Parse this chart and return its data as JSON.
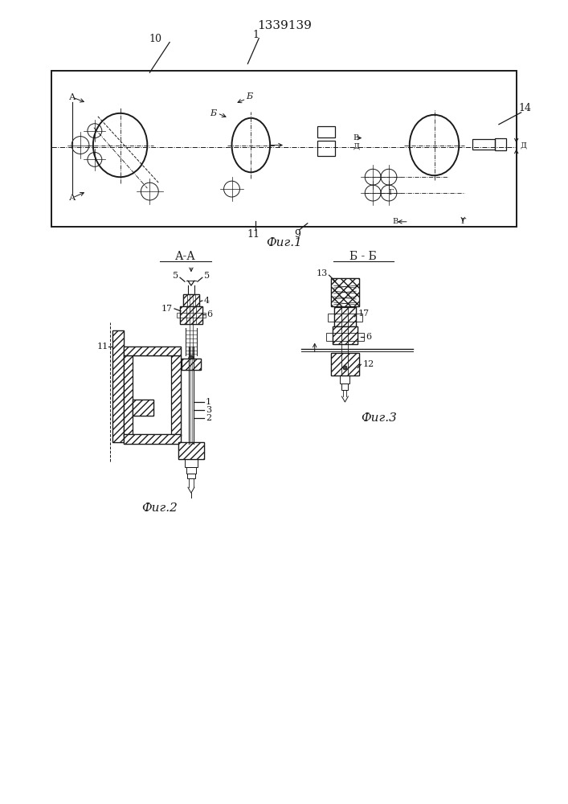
{
  "title": "1339139",
  "fig1_label": "Фиг.1",
  "fig2_label": "Фиг.2",
  "fig3_label": "Фиг.3",
  "section_AA": "А-А",
  "section_BB": "Б - Б",
  "bg_color": "#ffffff",
  "lc": "#1a1a1a"
}
